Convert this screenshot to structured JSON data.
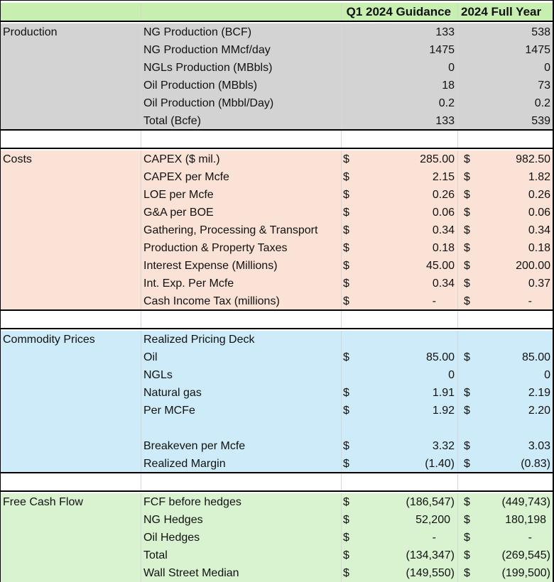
{
  "header": {
    "col1": "Q1 2024 Guidance",
    "col2": "2024 Full Year"
  },
  "sections": {
    "production": {
      "title": "Production",
      "rows": [
        {
          "label": "NG Production (BCF)",
          "c1": "",
          "v1": "133",
          "c2": "",
          "v2": "538"
        },
        {
          "label": "NG Production MMcf/day",
          "c1": "",
          "v1": "1475",
          "c2": "",
          "v2": "1475"
        },
        {
          "label": "NGLs Production (MBbls)",
          "c1": "",
          "v1": "0",
          "c2": "",
          "v2": "0"
        },
        {
          "label": "Oil Production (MBbls)",
          "c1": "",
          "v1": "18",
          "c2": "",
          "v2": "73"
        },
        {
          "label": "Oil Production (Mbbl/Day)",
          "c1": "",
          "v1": "0.2",
          "c2": "",
          "v2": "0.2"
        },
        {
          "label": "Total (Bcfe)",
          "c1": "",
          "v1": "133",
          "c2": "",
          "v2": "539"
        }
      ]
    },
    "costs": {
      "title": "Costs",
      "rows": [
        {
          "label": "CAPEX ($ mil.)",
          "c1": "$",
          "v1": "285.00",
          "c2": "$",
          "v2": "982.50"
        },
        {
          "label": "CAPEX per Mcfe",
          "c1": "$",
          "v1": "2.15",
          "c2": "$",
          "v2": "1.82"
        },
        {
          "label": "LOE per Mcfe",
          "c1": "$",
          "v1": "0.26",
          "c2": "$",
          "v2": "0.26"
        },
        {
          "label": "G&A per BOE",
          "c1": "$",
          "v1": "0.06",
          "c2": "$",
          "v2": "0.06"
        },
        {
          "label": "Gathering, Processing & Transport",
          "c1": "$",
          "v1": "0.34",
          "c2": "$",
          "v2": "0.34"
        },
        {
          "label": "Production & Property Taxes",
          "c1": "$",
          "v1": "0.18",
          "c2": "$",
          "v2": "0.18"
        },
        {
          "label": "Interest Expense (Millions)",
          "c1": "$",
          "v1": "45.00",
          "c2": "$",
          "v2": "200.00"
        },
        {
          "label": "Int. Exp. Per Mcfe",
          "c1": "$",
          "v1": "0.34",
          "c2": "$",
          "v2": "0.37"
        },
        {
          "label": "Cash Income Tax (millions)",
          "c1": "$",
          "v1": "-",
          "c2": "$",
          "v2": "-"
        }
      ]
    },
    "commodity": {
      "title": "Commodity Prices",
      "rows": [
        {
          "label": "Realized Pricing Deck",
          "c1": "",
          "v1": "",
          "c2": "",
          "v2": ""
        },
        {
          "label": "Oil",
          "c1": "$",
          "v1": "85.00",
          "c2": "$",
          "v2": "85.00"
        },
        {
          "label": "NGLs",
          "c1": "",
          "v1": "0",
          "c2": "",
          "v2": "0"
        },
        {
          "label": "Natural gas",
          "c1": "$",
          "v1": "1.91",
          "c2": "$",
          "v2": "2.19"
        },
        {
          "label": "Per MCFe",
          "c1": "$",
          "v1": "1.92",
          "c2": "$",
          "v2": "2.20"
        },
        {
          "label": "",
          "c1": "",
          "v1": "",
          "c2": "",
          "v2": ""
        },
        {
          "label": "Breakeven per Mcfe",
          "c1": "$",
          "v1": "3.32",
          "c2": "$",
          "v2": "3.03"
        },
        {
          "label": "Realized Margin",
          "c1": "$",
          "v1": "(1.40)",
          "c2": "$",
          "v2": "(0.83)"
        }
      ]
    },
    "fcf": {
      "title": "Free Cash Flow",
      "rows": [
        {
          "label": "FCF before hedges",
          "c1": "$",
          "v1": "(186,547)",
          "c2": "$",
          "v2": "(449,743)"
        },
        {
          "label": "NG Hedges",
          "c1": "$",
          "v1": "52,200",
          "c2": "$",
          "v2": "180,198"
        },
        {
          "label": "Oil Hedges",
          "c1": "$",
          "v1": "-",
          "c2": "$",
          "v2": "-"
        },
        {
          "label": "Total",
          "c1": "$",
          "v1": "(134,347)",
          "c2": "$",
          "v2": "(269,545)"
        },
        {
          "label": "Wall Street Median",
          "c1": "$",
          "v1": "(149,550)",
          "c2": "$",
          "v2": "(199,500)"
        }
      ]
    }
  },
  "colors": {
    "header": "#c6efb0",
    "production": "#d3d3d3",
    "costs": "#fbe2d6",
    "commodity": "#cdebf8",
    "fcf": "#d9f2d0"
  }
}
